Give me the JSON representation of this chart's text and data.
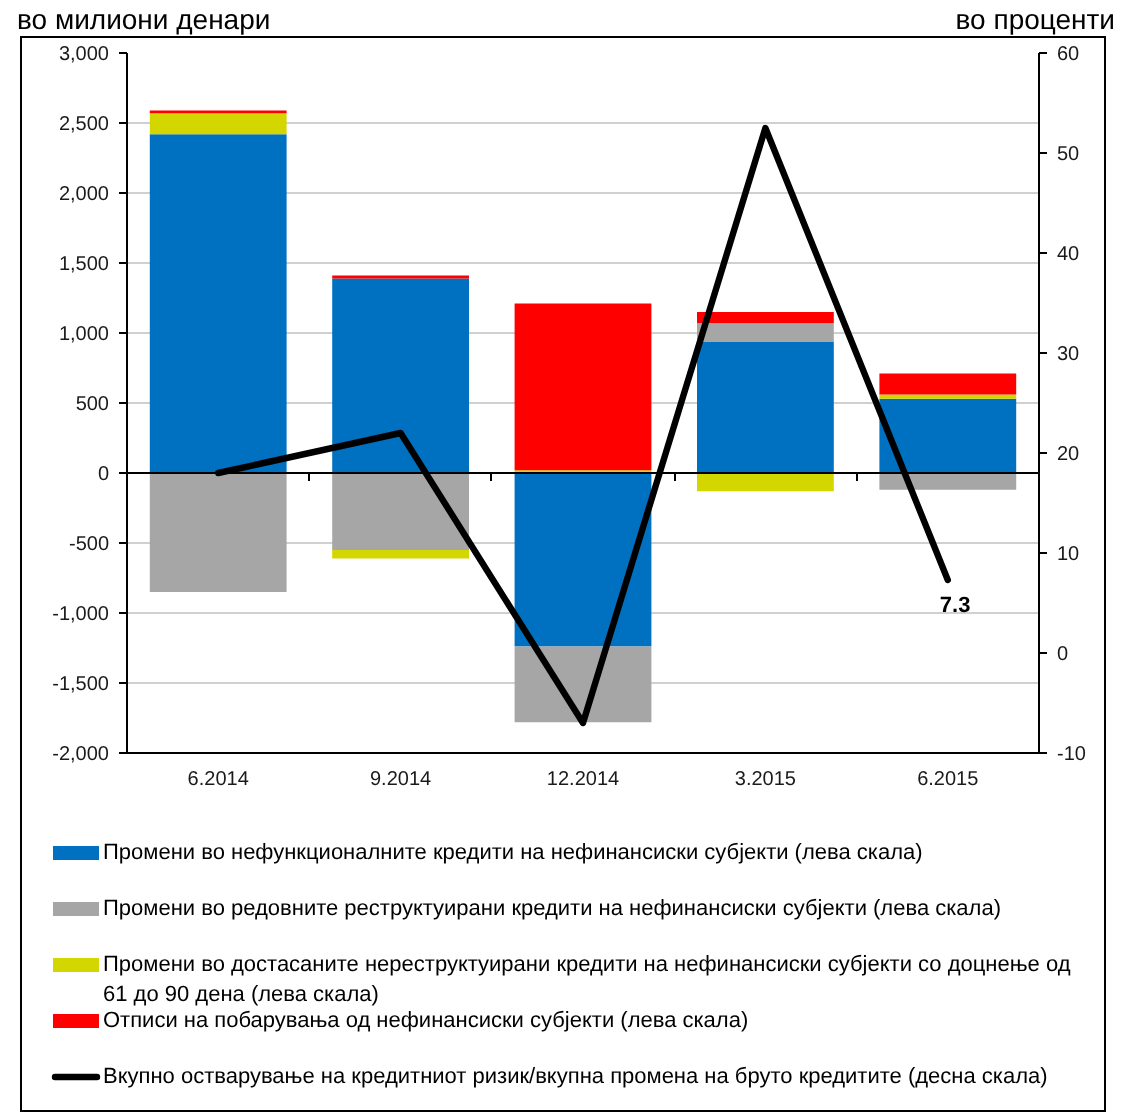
{
  "chart_data": {
    "type": "bar",
    "stacked": true,
    "ylabel": "во милиони денари",
    "y2label": "во проценти",
    "categories": [
      "6.2014",
      "9.2014",
      "12.2014",
      "3.2015",
      "6.2015"
    ],
    "series": [
      {
        "name": "Промени во нефункционалните кредити на нефинансиски субјекти (лева скала)",
        "color": "#0070c0",
        "values": [
          2420,
          1390,
          -1240,
          940,
          530
        ]
      },
      {
        "name": "Промени во редовните реструктуирани кредити на нефинансиски субјекти (лева скала)",
        "color": "#a6a6a6",
        "values": [
          -850,
          -550,
          -540,
          130,
          -120
        ]
      },
      {
        "name": "Промени во достасаните нереструктуирани кредити на нефинансиски субјекти со доцнење од 61 до 90 дена (лева скала)",
        "color": "#d4d600",
        "values": [
          150,
          -60,
          20,
          -130,
          30
        ]
      },
      {
        "name": "Отписи на побарувања од нефинансиски субјекти (лева скала)",
        "color": "#ff0000",
        "values": [
          20,
          20,
          1190,
          80,
          150
        ]
      },
      {
        "name": "Вкупно остварување на кредитниот ризик/вкупна промена на бруто кредитите (десна скала)",
        "type": "line",
        "axis": "y2",
        "color": "#000000",
        "values": [
          18,
          22,
          -7,
          52.5,
          7.3
        ],
        "value_labels": [
          null,
          null,
          null,
          null,
          "7.3"
        ]
      }
    ],
    "ylim": [
      -2000,
      3000
    ],
    "yticks": [
      {
        "value": -2000,
        "label": "-2,000"
      },
      {
        "value": -1500,
        "label": "-1,500"
      },
      {
        "value": -1000,
        "label": "-1,000"
      },
      -500,
      0,
      500,
      {
        "value": 1000,
        "label": "1,000"
      },
      {
        "value": 1500,
        "label": "1,500"
      },
      {
        "value": 2000,
        "label": "2,000"
      },
      {
        "value": 2500,
        "label": "2,500"
      },
      {
        "value": 3000,
        "label": "3,000"
      }
    ],
    "y2lim": [
      -10,
      60
    ],
    "y2ticks": [
      -10,
      0,
      10,
      20,
      30,
      40,
      50,
      60
    ],
    "grid": "y",
    "legend": "bottom"
  }
}
